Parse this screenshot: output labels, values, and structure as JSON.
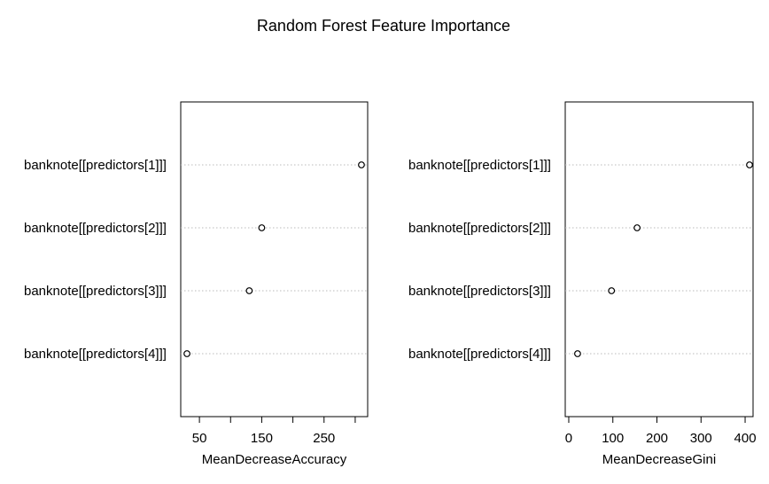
{
  "title": "Random Forest Feature Importance",
  "chart_data": [
    {
      "type": "scatter",
      "xlabel": "MeanDecreaseAccuracy",
      "categories": [
        "banknote[[predictors[1]]]",
        "banknote[[predictors[2]]]",
        "banknote[[predictors[3]]]",
        "banknote[[predictors[4]]]"
      ],
      "values": [
        310,
        150,
        130,
        30
      ],
      "xlim": [
        20,
        320
      ],
      "xticks": [
        50,
        100,
        150,
        200,
        250,
        300
      ],
      "xtick_labels": [
        "50",
        "",
        "150",
        "",
        "250",
        ""
      ],
      "grid": "dotted horizontal"
    },
    {
      "type": "scatter",
      "xlabel": "MeanDecreaseGini",
      "categories": [
        "banknote[[predictors[1]]]",
        "banknote[[predictors[2]]]",
        "banknote[[predictors[3]]]",
        "banknote[[predictors[4]]]"
      ],
      "values": [
        410,
        155,
        97,
        20
      ],
      "xlim": [
        -8,
        418
      ],
      "xticks": [
        0,
        100,
        200,
        300,
        400
      ],
      "xtick_labels": [
        "0",
        "100",
        "200",
        "300",
        "400"
      ],
      "grid": "dotted horizontal"
    }
  ]
}
